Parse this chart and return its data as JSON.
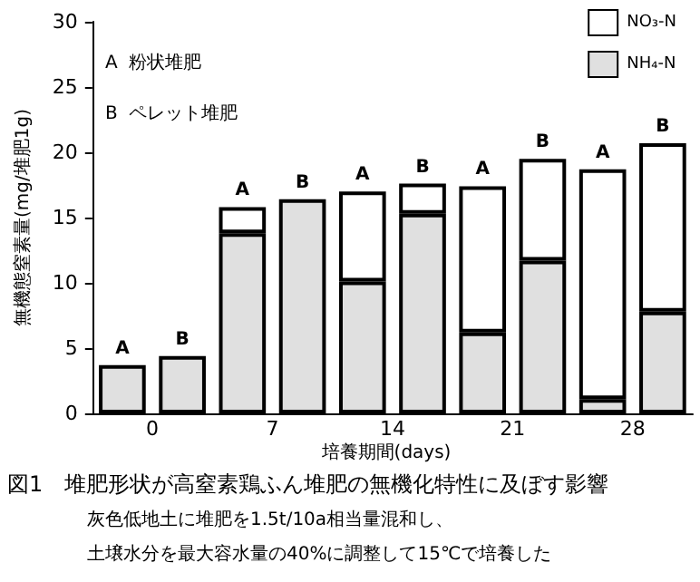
{
  "chart_data": {
    "type": "bar",
    "stacked": true,
    "title": "図1　堆肥形状が高窒素鶏ふん堆肥の無機化特性に及ぼす影響",
    "xlabel": "培養期間(days)",
    "ylabel": "無機態窒素量(mg/堆肥1g)",
    "categories": [
      "A",
      "B",
      "A",
      "B",
      "A",
      "B",
      "A",
      "B",
      "A",
      "B"
    ],
    "series": [
      {
        "name": "NH₄-N",
        "color": "#e0e0e0",
        "values": [
          3.7,
          4.4,
          13.8,
          16.4,
          10.1,
          15.3,
          6.2,
          11.7,
          1.1,
          7.8
        ]
      },
      {
        "name": "NO₃-N",
        "color": "#ffffff",
        "values": [
          0,
          0,
          2.0,
          0,
          6.9,
          2.3,
          11.2,
          7.8,
          17.6,
          12.9
        ]
      }
    ],
    "annotations": [
      "A  粉状堆肥",
      "B  ペレット堆肥",
      "0",
      "7",
      "14",
      "21",
      "28",
      "灰色低地土に堆肥を1.5t/10a相当量混和し、",
      "土壌水分を最大容水量の40%に調整して15℃で培養した"
    ],
    "ylim": [
      0,
      30
    ],
    "yticks": [
      0,
      5,
      10,
      15,
      20,
      25,
      30
    ],
    "grid": false,
    "legend": "top right"
  }
}
